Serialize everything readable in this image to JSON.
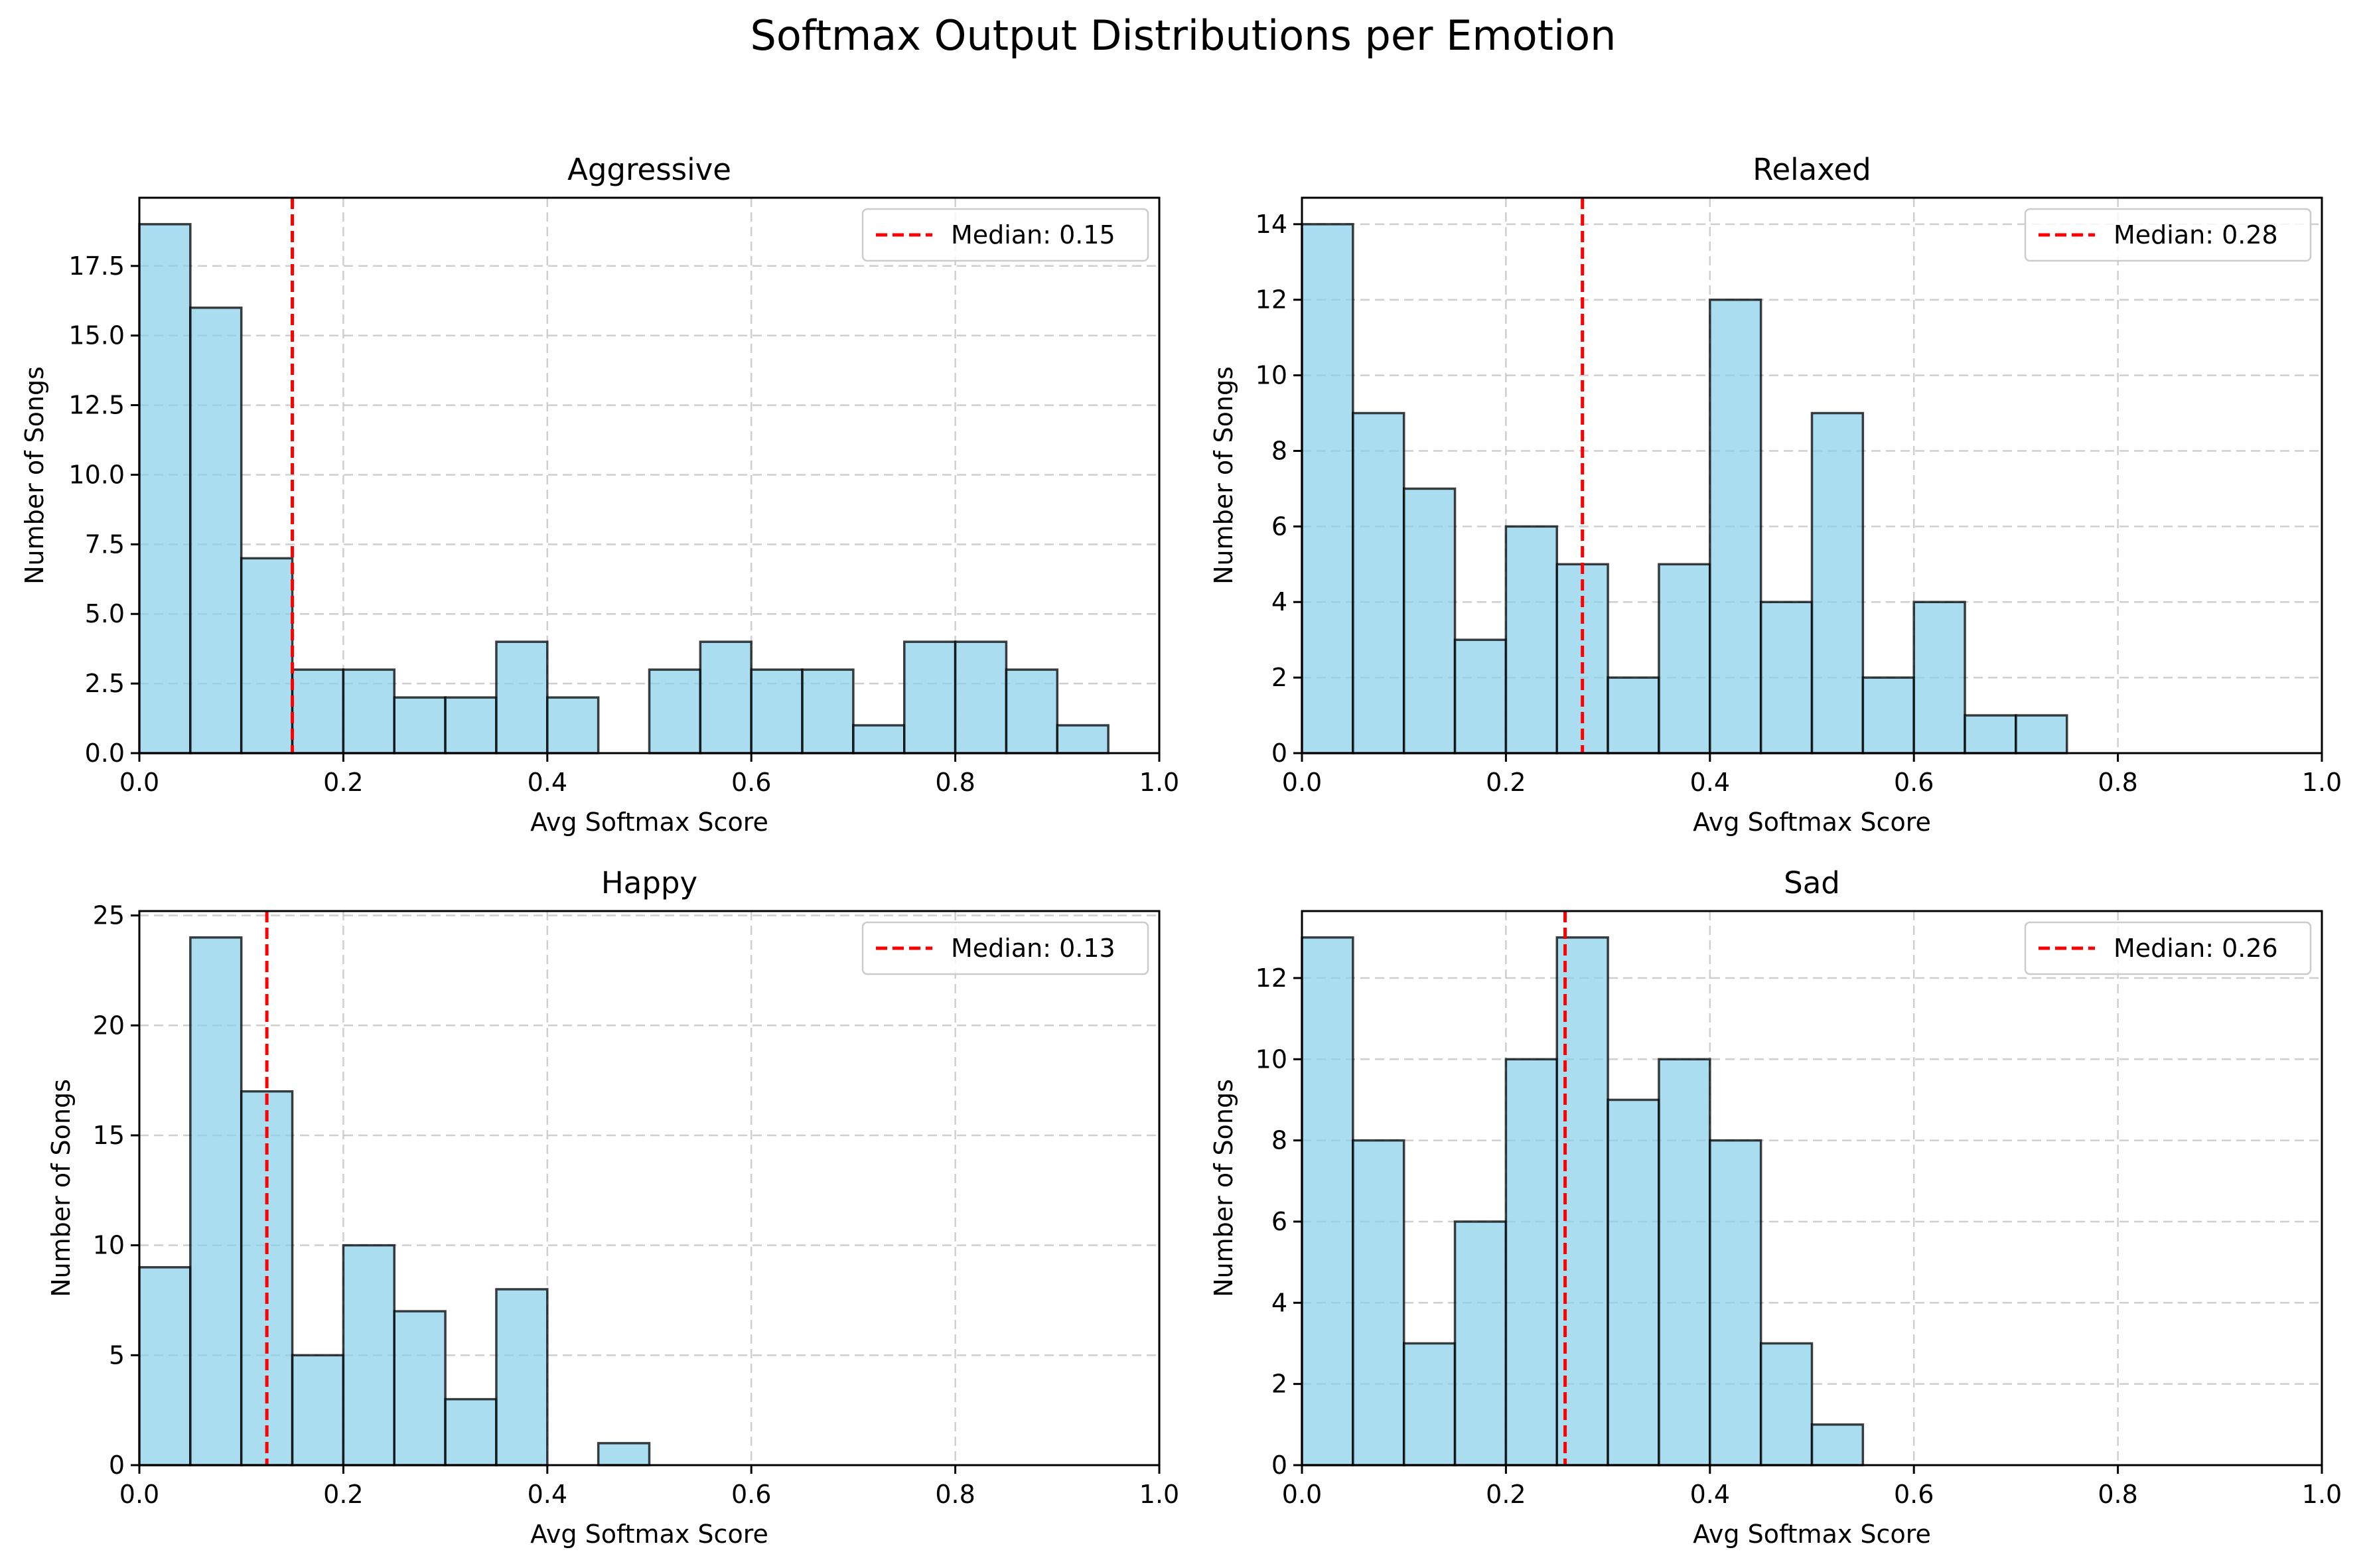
{
  "title": "Softmax Output Distributions per Emotion",
  "colors": {
    "bar": "#87ceeb",
    "median": "#ff0000"
  },
  "chart_data": [
    {
      "type": "bar",
      "title": "Aggressive",
      "xlabel": "Avg Softmax Score",
      "ylabel": "Number of Songs",
      "xlim": [
        0,
        1
      ],
      "ylim": [
        0,
        19.95
      ],
      "xticks": [
        0.0,
        0.2,
        0.4,
        0.6,
        0.8,
        1.0
      ],
      "xtick_labels": [
        "0.0",
        "0.2",
        "0.4",
        "0.6",
        "0.8",
        "1.0"
      ],
      "yticks": [
        0,
        2.5,
        5,
        7.5,
        10,
        12.5,
        15,
        17.5
      ],
      "ytick_labels": [
        "0.0",
        "2.5",
        "5.0",
        "7.5",
        "10.0",
        "12.5",
        "15.0",
        "17.5"
      ],
      "bin_width": 0.05,
      "bin_starts": [
        0,
        0.05,
        0.1,
        0.15,
        0.2,
        0.25,
        0.3,
        0.35,
        0.4,
        0.45,
        0.5,
        0.55,
        0.6,
        0.65,
        0.7,
        0.75,
        0.8,
        0.85,
        0.9,
        0.95
      ],
      "values": [
        19,
        16,
        7,
        3,
        3,
        2,
        2,
        4,
        2,
        0,
        3,
        4,
        3,
        3,
        1,
        4,
        4,
        3,
        1,
        0
      ],
      "median": 0.15,
      "legend": "Median: 0.15",
      "legend_position": "upper right",
      "grid": true
    },
    {
      "type": "bar",
      "title": "Relaxed",
      "xlabel": "Avg Softmax Score",
      "ylabel": "Number of Songs",
      "xlim": [
        0,
        1
      ],
      "ylim": [
        0,
        14.7
      ],
      "xticks": [
        0.0,
        0.2,
        0.4,
        0.6,
        0.8,
        1.0
      ],
      "xtick_labels": [
        "0.0",
        "0.2",
        "0.4",
        "0.6",
        "0.8",
        "1.0"
      ],
      "yticks": [
        0,
        2,
        4,
        6,
        8,
        10,
        12,
        14
      ],
      "ytick_labels": [
        "0",
        "2",
        "4",
        "6",
        "8",
        "10",
        "12",
        "14"
      ],
      "bin_width": 0.05,
      "bin_starts": [
        0,
        0.05,
        0.1,
        0.15,
        0.2,
        0.25,
        0.3,
        0.35,
        0.4,
        0.45,
        0.5,
        0.55,
        0.6,
        0.65,
        0.7,
        0.75,
        0.8,
        0.85,
        0.9,
        0.95
      ],
      "values": [
        14,
        9,
        7,
        3,
        6,
        5,
        2,
        5,
        12,
        4,
        9,
        2,
        4,
        1,
        1,
        0,
        0,
        0,
        0,
        0
      ],
      "median": 0.275,
      "legend": "Median: 0.28",
      "legend_position": "upper right",
      "grid": true
    },
    {
      "type": "bar",
      "title": "Happy",
      "xlabel": "Avg Softmax Score",
      "ylabel": "Number of Songs",
      "xlim": [
        0,
        1
      ],
      "ylim": [
        0,
        25.2
      ],
      "xticks": [
        0.0,
        0.2,
        0.4,
        0.6,
        0.8,
        1.0
      ],
      "xtick_labels": [
        "0.0",
        "0.2",
        "0.4",
        "0.6",
        "0.8",
        "1.0"
      ],
      "yticks": [
        0,
        5,
        10,
        15,
        20,
        25
      ],
      "ytick_labels": [
        "0",
        "5",
        "10",
        "15",
        "20",
        "25"
      ],
      "bin_width": 0.05,
      "bin_starts": [
        0,
        0.05,
        0.1,
        0.15,
        0.2,
        0.25,
        0.3,
        0.35,
        0.4,
        0.45,
        0.5,
        0.55,
        0.6,
        0.65,
        0.7,
        0.75,
        0.8,
        0.85,
        0.9,
        0.95
      ],
      "values": [
        9,
        24,
        17,
        5,
        10,
        7,
        3,
        8,
        0,
        1,
        0,
        0,
        0,
        0,
        0,
        0,
        0,
        0,
        0,
        0
      ],
      "median": 0.125,
      "legend": "Median: 0.13",
      "legend_position": "upper right",
      "grid": true
    },
    {
      "type": "bar",
      "title": "Sad",
      "xlabel": "Avg Softmax Score",
      "ylabel": "Number of Songs",
      "xlim": [
        0,
        1
      ],
      "ylim": [
        0,
        13.65
      ],
      "xticks": [
        0.0,
        0.2,
        0.4,
        0.6,
        0.8,
        1.0
      ],
      "xtick_labels": [
        "0.0",
        "0.2",
        "0.4",
        "0.6",
        "0.8",
        "1.0"
      ],
      "yticks": [
        0,
        2,
        4,
        6,
        8,
        10,
        12
      ],
      "ytick_labels": [
        "0",
        "2",
        "4",
        "6",
        "8",
        "10",
        "12"
      ],
      "bin_width": 0.05,
      "bin_starts": [
        0,
        0.05,
        0.1,
        0.15,
        0.2,
        0.25,
        0.3,
        0.35,
        0.4,
        0.45,
        0.5,
        0.55,
        0.6,
        0.65,
        0.7,
        0.75,
        0.8,
        0.85,
        0.9,
        0.95
      ],
      "values": [
        13,
        8,
        3,
        6,
        10,
        13,
        9,
        10,
        8,
        3,
        1,
        0,
        0,
        0,
        0,
        0,
        0,
        0,
        0,
        0
      ],
      "median": 0.258,
      "legend": "Median: 0.26",
      "legend_position": "upper right",
      "grid": true
    }
  ]
}
